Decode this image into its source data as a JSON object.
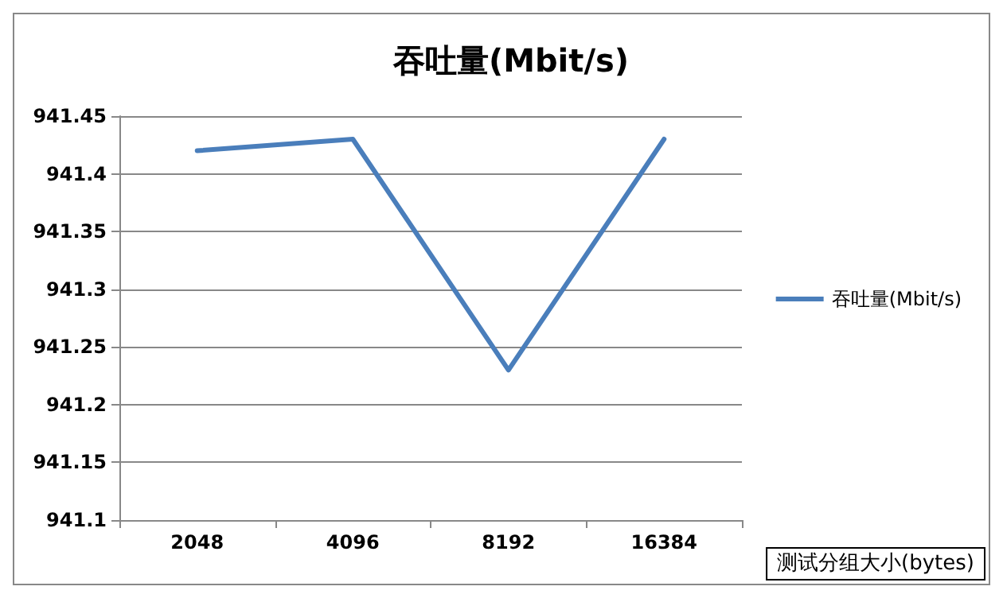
{
  "chart_data": {
    "type": "line",
    "title": "吞吐量(Mbit/s)",
    "xlabel": "测试分组大小(bytes)",
    "categories": [
      "2048",
      "4096",
      "8192",
      "16384"
    ],
    "series": [
      {
        "name": "吞吐量(Mbit/s)",
        "color": "#4a7ebb",
        "values": [
          941.42,
          941.43,
          941.23,
          941.43
        ]
      }
    ],
    "ylim": [
      941.1,
      941.45
    ],
    "yticks": [
      941.1,
      941.15,
      941.2,
      941.25,
      941.3,
      941.35,
      941.4,
      941.45
    ],
    "grid": "y",
    "legend": "right",
    "marker": "none",
    "line_style": "solid"
  }
}
